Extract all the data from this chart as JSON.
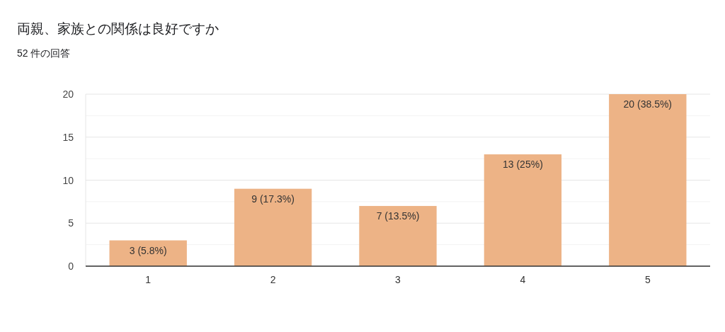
{
  "chart_data": {
    "type": "bar",
    "title": "両親、家族との関係は良好ですか",
    "subtitle": "52 件の回答",
    "categories": [
      "1",
      "2",
      "3",
      "4",
      "5"
    ],
    "values": [
      3,
      9,
      7,
      13,
      20
    ],
    "value_labels": [
      "3 (5.8%)",
      "9 (17.3%)",
      "7 (13.5%)",
      "13 (25%)",
      "20 (38.5%)"
    ],
    "color": "#edb386",
    "ylim": [
      0,
      20
    ],
    "yticks": [
      0,
      {
        "value": 2.5,
        "label": null
      },
      5,
      {
        "value": 7.5,
        "label": null
      },
      10,
      {
        "value": 12.5,
        "label": null
      },
      15,
      {
        "value": 17.5,
        "label": null
      },
      20
    ],
    "grid": "y"
  }
}
